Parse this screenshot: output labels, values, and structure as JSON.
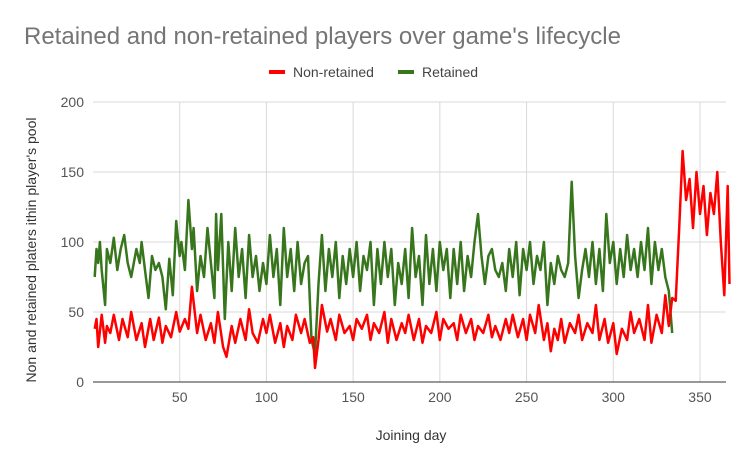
{
  "chart_data": {
    "type": "line",
    "title": "Retained and non-retained players over game's lifecycle",
    "xlabel": "Joining day",
    "ylabel": "Non and retained platers ithin player's pool",
    "xlim": [
      0,
      365
    ],
    "ylim": [
      0,
      200
    ],
    "x_ticks": [
      50,
      100,
      150,
      200,
      250,
      300,
      350
    ],
    "y_ticks": [
      0,
      50,
      100,
      150,
      200
    ],
    "grid": true,
    "legend_position": "top-center",
    "series": [
      {
        "name": "Non-retained",
        "color": "#ff0000",
        "points": [
          [
            1,
            38
          ],
          [
            2,
            45
          ],
          [
            3,
            25
          ],
          [
            5,
            48
          ],
          [
            7,
            28
          ],
          [
            8,
            40
          ],
          [
            10,
            35
          ],
          [
            12,
            48
          ],
          [
            15,
            30
          ],
          [
            17,
            45
          ],
          [
            20,
            32
          ],
          [
            22,
            50
          ],
          [
            25,
            30
          ],
          [
            28,
            42
          ],
          [
            30,
            25
          ],
          [
            33,
            45
          ],
          [
            35,
            30
          ],
          [
            38,
            46
          ],
          [
            40,
            28
          ],
          [
            42,
            40
          ],
          [
            45,
            32
          ],
          [
            48,
            50
          ],
          [
            50,
            36
          ],
          [
            53,
            45
          ],
          [
            55,
            38
          ],
          [
            57,
            68
          ],
          [
            60,
            35
          ],
          [
            62,
            48
          ],
          [
            65,
            30
          ],
          [
            68,
            42
          ],
          [
            70,
            28
          ],
          [
            72,
            50
          ],
          [
            75,
            25
          ],
          [
            77,
            18
          ],
          [
            80,
            40
          ],
          [
            82,
            28
          ],
          [
            85,
            45
          ],
          [
            88,
            30
          ],
          [
            90,
            52
          ],
          [
            92,
            35
          ],
          [
            95,
            28
          ],
          [
            98,
            45
          ],
          [
            100,
            35
          ],
          [
            102,
            48
          ],
          [
            105,
            28
          ],
          [
            108,
            42
          ],
          [
            110,
            25
          ],
          [
            112,
            40
          ],
          [
            115,
            30
          ],
          [
            117,
            48
          ],
          [
            120,
            35
          ],
          [
            122,
            45
          ],
          [
            125,
            28
          ],
          [
            127,
            32
          ],
          [
            128,
            10
          ],
          [
            130,
            30
          ],
          [
            132,
            55
          ],
          [
            135,
            36
          ],
          [
            137,
            45
          ],
          [
            140,
            30
          ],
          [
            142,
            48
          ],
          [
            145,
            35
          ],
          [
            148,
            40
          ],
          [
            150,
            30
          ],
          [
            152,
            45
          ],
          [
            155,
            38
          ],
          [
            158,
            48
          ],
          [
            160,
            30
          ],
          [
            162,
            42
          ],
          [
            165,
            35
          ],
          [
            168,
            50
          ],
          [
            170,
            28
          ],
          [
            172,
            45
          ],
          [
            175,
            30
          ],
          [
            178,
            42
          ],
          [
            180,
            35
          ],
          [
            182,
            48
          ],
          [
            185,
            30
          ],
          [
            188,
            45
          ],
          [
            190,
            28
          ],
          [
            192,
            40
          ],
          [
            195,
            35
          ],
          [
            198,
            50
          ],
          [
            200,
            30
          ],
          [
            202,
            45
          ],
          [
            205,
            38
          ],
          [
            208,
            42
          ],
          [
            210,
            30
          ],
          [
            212,
            48
          ],
          [
            215,
            35
          ],
          [
            218,
            45
          ],
          [
            220,
            30
          ],
          [
            222,
            40
          ],
          [
            225,
            35
          ],
          [
            228,
            48
          ],
          [
            230,
            32
          ],
          [
            232,
            40
          ],
          [
            235,
            30
          ],
          [
            238,
            45
          ],
          [
            240,
            35
          ],
          [
            242,
            48
          ],
          [
            245,
            32
          ],
          [
            248,
            45
          ],
          [
            250,
            30
          ],
          [
            252,
            48
          ],
          [
            255,
            35
          ],
          [
            257,
            55
          ],
          [
            260,
            30
          ],
          [
            262,
            42
          ],
          [
            264,
            22
          ],
          [
            266,
            38
          ],
          [
            268,
            30
          ],
          [
            270,
            45
          ],
          [
            272,
            28
          ],
          [
            275,
            42
          ],
          [
            278,
            35
          ],
          [
            280,
            48
          ],
          [
            282,
            30
          ],
          [
            285,
            42
          ],
          [
            288,
            35
          ],
          [
            290,
            55
          ],
          [
            292,
            30
          ],
          [
            295,
            45
          ],
          [
            297,
            28
          ],
          [
            300,
            42
          ],
          [
            302,
            20
          ],
          [
            305,
            38
          ],
          [
            308,
            30
          ],
          [
            310,
            50
          ],
          [
            312,
            35
          ],
          [
            315,
            45
          ],
          [
            318,
            30
          ],
          [
            320,
            55
          ],
          [
            322,
            28
          ],
          [
            325,
            48
          ],
          [
            328,
            35
          ],
          [
            330,
            62
          ],
          [
            332,
            40
          ],
          [
            334,
            60
          ],
          [
            336,
            58
          ],
          [
            338,
            110
          ],
          [
            340,
            165
          ],
          [
            342,
            130
          ],
          [
            344,
            145
          ],
          [
            346,
            110
          ],
          [
            348,
            150
          ],
          [
            350,
            120
          ],
          [
            352,
            140
          ],
          [
            354,
            105
          ],
          [
            356,
            135
          ],
          [
            358,
            120
          ],
          [
            360,
            150
          ],
          [
            362,
            100
          ],
          [
            364,
            62
          ],
          [
            366,
            140
          ],
          [
            367,
            70
          ]
        ]
      },
      {
        "name": "Retained",
        "color": "#38761d",
        "points": [
          [
            1,
            75
          ],
          [
            2,
            95
          ],
          [
            3,
            85
          ],
          [
            4,
            100
          ],
          [
            5,
            80
          ],
          [
            7,
            55
          ],
          [
            8,
            95
          ],
          [
            10,
            85
          ],
          [
            12,
            103
          ],
          [
            14,
            80
          ],
          [
            16,
            95
          ],
          [
            18,
            105
          ],
          [
            20,
            85
          ],
          [
            22,
            75
          ],
          [
            25,
            95
          ],
          [
            27,
            85
          ],
          [
            28,
            100
          ],
          [
            30,
            80
          ],
          [
            32,
            60
          ],
          [
            34,
            90
          ],
          [
            36,
            80
          ],
          [
            38,
            85
          ],
          [
            40,
            75
          ],
          [
            42,
            52
          ],
          [
            44,
            88
          ],
          [
            46,
            62
          ],
          [
            48,
            115
          ],
          [
            50,
            90
          ],
          [
            51,
            100
          ],
          [
            53,
            80
          ],
          [
            55,
            130
          ],
          [
            57,
            95
          ],
          [
            58,
            110
          ],
          [
            60,
            65
          ],
          [
            62,
            90
          ],
          [
            64,
            75
          ],
          [
            66,
            110
          ],
          [
            68,
            85
          ],
          [
            70,
            60
          ],
          [
            71,
            120
          ],
          [
            72,
            80
          ],
          [
            74,
            120
          ],
          [
            76,
            45
          ],
          [
            78,
            100
          ],
          [
            80,
            65
          ],
          [
            82,
            110
          ],
          [
            84,
            75
          ],
          [
            86,
            95
          ],
          [
            88,
            60
          ],
          [
            90,
            105
          ],
          [
            92,
            75
          ],
          [
            94,
            90
          ],
          [
            96,
            65
          ],
          [
            98,
            85
          ],
          [
            100,
            70
          ],
          [
            102,
            105
          ],
          [
            104,
            75
          ],
          [
            106,
            95
          ],
          [
            108,
            55
          ],
          [
            110,
            110
          ],
          [
            112,
            75
          ],
          [
            114,
            95
          ],
          [
            116,
            65
          ],
          [
            118,
            100
          ],
          [
            120,
            70
          ],
          [
            122,
            85
          ],
          [
            124,
            90
          ],
          [
            126,
            30
          ],
          [
            128,
            20
          ],
          [
            130,
            70
          ],
          [
            132,
            105
          ],
          [
            134,
            65
          ],
          [
            136,
            95
          ],
          [
            138,
            75
          ],
          [
            140,
            100
          ],
          [
            142,
            60
          ],
          [
            144,
            90
          ],
          [
            146,
            70
          ],
          [
            148,
            95
          ],
          [
            150,
            75
          ],
          [
            152,
            100
          ],
          [
            154,
            65
          ],
          [
            156,
            90
          ],
          [
            158,
            80
          ],
          [
            160,
            100
          ],
          [
            162,
            55
          ],
          [
            164,
            95
          ],
          [
            166,
            70
          ],
          [
            168,
            100
          ],
          [
            170,
            75
          ],
          [
            172,
            95
          ],
          [
            174,
            55
          ],
          [
            176,
            85
          ],
          [
            178,
            70
          ],
          [
            180,
            95
          ],
          [
            182,
            60
          ],
          [
            184,
            110
          ],
          [
            186,
            75
          ],
          [
            188,
            90
          ],
          [
            190,
            55
          ],
          [
            192,
            105
          ],
          [
            194,
            70
          ],
          [
            196,
            95
          ],
          [
            198,
            65
          ],
          [
            200,
            100
          ],
          [
            202,
            80
          ],
          [
            204,
            95
          ],
          [
            206,
            60
          ],
          [
            208,
            95
          ],
          [
            210,
            70
          ],
          [
            212,
            100
          ],
          [
            214,
            65
          ],
          [
            216,
            90
          ],
          [
            218,
            75
          ],
          [
            220,
            100
          ],
          [
            222,
            120
          ],
          [
            224,
            90
          ],
          [
            226,
            70
          ],
          [
            228,
            90
          ],
          [
            230,
            95
          ],
          [
            232,
            80
          ],
          [
            234,
            75
          ],
          [
            236,
            85
          ],
          [
            238,
            65
          ],
          [
            240,
            95
          ],
          [
            242,
            75
          ],
          [
            244,
            100
          ],
          [
            246,
            62
          ],
          [
            248,
            95
          ],
          [
            250,
            80
          ],
          [
            252,
            100
          ],
          [
            254,
            70
          ],
          [
            256,
            90
          ],
          [
            258,
            80
          ],
          [
            260,
            100
          ],
          [
            262,
            55
          ],
          [
            264,
            85
          ],
          [
            266,
            70
          ],
          [
            268,
            90
          ],
          [
            270,
            80
          ],
          [
            272,
            75
          ],
          [
            274,
            85
          ],
          [
            276,
            143
          ],
          [
            278,
            90
          ],
          [
            280,
            60
          ],
          [
            282,
            80
          ],
          [
            284,
            95
          ],
          [
            286,
            75
          ],
          [
            288,
            100
          ],
          [
            290,
            70
          ],
          [
            292,
            95
          ],
          [
            294,
            65
          ],
          [
            296,
            120
          ],
          [
            298,
            85
          ],
          [
            300,
            100
          ],
          [
            302,
            70
          ],
          [
            304,
            95
          ],
          [
            306,
            75
          ],
          [
            308,
            105
          ],
          [
            310,
            80
          ],
          [
            312,
            95
          ],
          [
            314,
            75
          ],
          [
            316,
            100
          ],
          [
            318,
            80
          ],
          [
            320,
            110
          ],
          [
            322,
            70
          ],
          [
            324,
            100
          ],
          [
            326,
            80
          ],
          [
            328,
            95
          ],
          [
            330,
            75
          ],
          [
            332,
            65
          ],
          [
            334,
            35
          ]
        ]
      }
    ]
  }
}
